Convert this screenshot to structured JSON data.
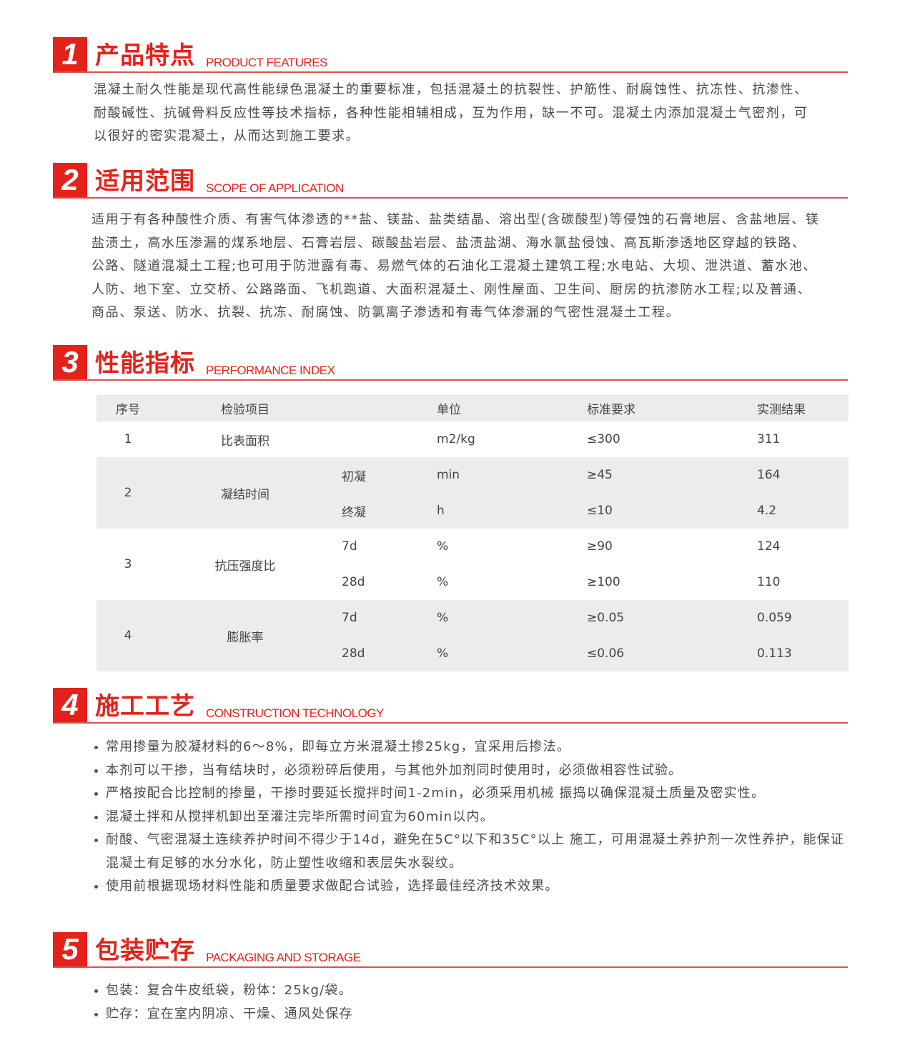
{
  "sections": [
    {
      "num": "1",
      "title_cn": "产品特点",
      "title_en": "PRODUCT FEATURES",
      "lines": [
        "混凝土耐久性能是现代高性能绿色混凝土的重要标准，包括混凝土的抗裂性、护筋性、耐腐蚀性、抗冻性、抗渗性、",
        "耐酸碱性、抗碱骨料反应性等技术指标，各种性能相辅相成，互为作用，缺一不可。混凝土内添加混凝土气密剂，可",
        "以很好的密实混凝土，从而达到施工要求。"
      ]
    },
    {
      "num": "2",
      "title_cn": "适用范围",
      "title_en": "SCOPE OF APPLICATION",
      "lines": [
        "适用于有各种酸性介质、有害气体渗透的**盐、镁盐、盐类结晶、溶出型(含碳酸型)等侵蚀的石膏地层、含盐地层、镁",
        "盐渍土，高水压渗漏的煤系地层、石膏岩层、碳酸盐岩层、盐渍盐湖、海水氯盐侵蚀、高瓦斯渗透地区穿越的铁路、",
        "公路、隧道混凝土工程;也可用于防泄露有毒、易燃气体的石油化工混凝土建筑工程;水电站、大坝、泄洪道、蓄水池、",
        "人防、地下室、立交桥、公路路面、飞机跑道、大面积混凝土、刚性屋面、卫生间、厨房的抗渗防水工程;以及普通、",
        "商品、泵送、防水、抗裂、抗冻、耐腐蚀、防氯离子渗透和有毒气体渗漏的气密性混凝土工程。"
      ]
    },
    {
      "num": "3",
      "title_cn": "性能指标",
      "title_en": "PERFORMANCE INDEX",
      "table": {
        "headers": [
          "序号",
          "检验项目",
          "单位",
          "标准要求",
          "实测结果"
        ],
        "rows": [
          {
            "no": "1",
            "item": "比表面积",
            "sub": [
              {
                "name": "",
                "unit": "m2/kg",
                "std": "≤300",
                "result": "311"
              }
            ]
          },
          {
            "no": "2",
            "item": "凝结时间",
            "sub": [
              {
                "name": "初凝",
                "unit": "min",
                "std": "≥45",
                "result": "164"
              },
              {
                "name": "终凝",
                "unit": "h",
                "std": "≤10",
                "result": "4.2"
              }
            ]
          },
          {
            "no": "3",
            "item": "抗压强度比",
            "sub": [
              {
                "name": "7d",
                "unit": "%",
                "std": "≥90",
                "result": "124"
              },
              {
                "name": "28d",
                "unit": "%",
                "std": "≥100",
                "result": "110"
              }
            ]
          },
          {
            "no": "4",
            "item": "膨胀率",
            "sub": [
              {
                "name": "7d",
                "unit": "%",
                "std": "≥0.05",
                "result": "0.059"
              },
              {
                "name": "28d",
                "unit": "%",
                "std": "≤0.06",
                "result": "0.113"
              }
            ]
          }
        ]
      }
    },
    {
      "num": "4",
      "title_cn": "施工工艺",
      "title_en": "CONSTRUCTION TECHNOLOGY",
      "bullets": [
        [
          "常用掺量为胶凝材料的6～8%，即每立方米混凝土掺25kg，宜采用后掺法。"
        ],
        [
          "本剂可以干掺，当有结块时，必须粉碎后使用，与其他外加剂同时使用时，必须做相容性试验。"
        ],
        [
          "严格按配合比控制的掺量，干掺时要延长搅拌时间1-2min，必须采用机械 振捣以确保混凝土质量及密实性。"
        ],
        [
          "混凝土拌和从搅拌机卸出至灌注完毕所需时间宜为60min以内。"
        ],
        [
          "耐酸、气密混凝土连续养护时间不得少于14d，避免在5C°以下和35C°以上 施工，可用混凝土养护剂一次性养护，能保证",
          "混凝土有足够的水分水化，防止塑性收缩和表层失水裂纹。"
        ],
        [
          "使用前根据现场材料性能和质量要求做配合试验，选择最佳经济技术效果。"
        ]
      ]
    },
    {
      "num": "5",
      "title_cn": "包装贮存",
      "title_en": "PACKAGING AND STORAGE",
      "bullets": [
        [
          "包装：复合牛皮纸袋，粉体：25kg/袋。"
        ],
        [
          "贮存：宜在室内阴凉、干燥、通风处保存"
        ]
      ]
    }
  ],
  "colors": {
    "accent": "#e3231b",
    "table_stripe": "#ececec",
    "text": "#4a4a4a"
  }
}
